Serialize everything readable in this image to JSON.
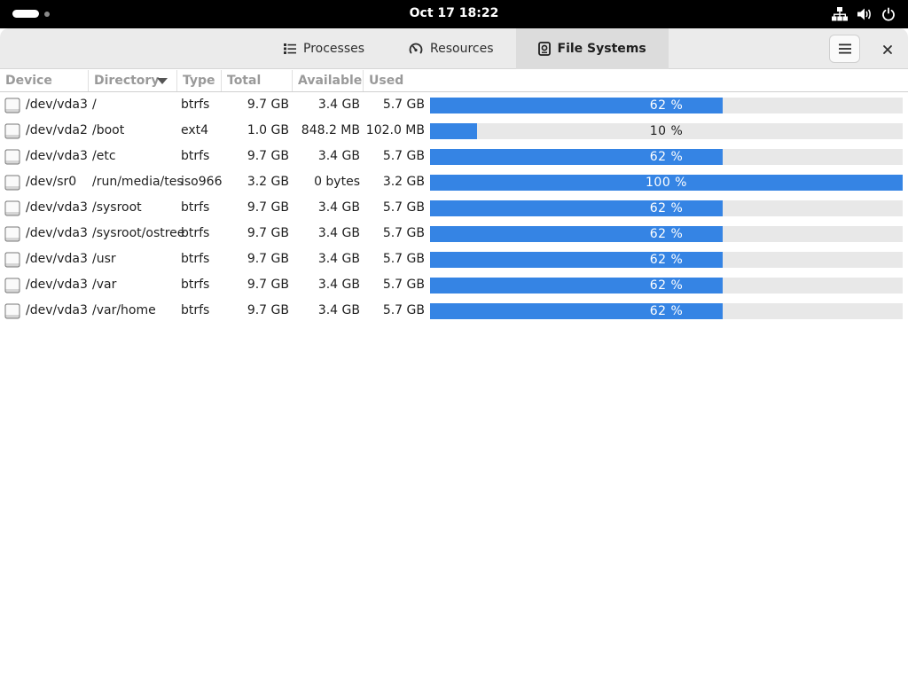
{
  "topbar": {
    "clock": "Oct 17  18:22",
    "icons": [
      "network-icon",
      "volume-icon",
      "power-icon"
    ]
  },
  "tabs": [
    {
      "label": "Processes",
      "icon": "list-icon",
      "active": false
    },
    {
      "label": "Resources",
      "icon": "gauge-icon",
      "active": false
    },
    {
      "label": "File Systems",
      "icon": "disk-icon",
      "active": true
    }
  ],
  "columns": {
    "device": "Device",
    "directory": "Directory",
    "type": "Type",
    "total": "Total",
    "available": "Available",
    "used": "Used"
  },
  "rows": [
    {
      "device": "/dev/vda3",
      "directory": "/",
      "type": "btrfs",
      "total": "9.7 GB",
      "available": "3.4 GB",
      "used": "5.7 GB",
      "percent": 62,
      "percent_label": "62 %"
    },
    {
      "device": "/dev/vda2",
      "directory": "/boot",
      "type": "ext4",
      "total": "1.0 GB",
      "available": "848.2 MB",
      "used": "102.0 MB",
      "percent": 10,
      "percent_label": "10 %"
    },
    {
      "device": "/dev/vda3",
      "directory": "/etc",
      "type": "btrfs",
      "total": "9.7 GB",
      "available": "3.4 GB",
      "used": "5.7 GB",
      "percent": 62,
      "percent_label": "62 %"
    },
    {
      "device": "/dev/sr0",
      "directory": "/run/media/tes",
      "type": "iso966",
      "total": "3.2 GB",
      "available": "0 bytes",
      "used": "3.2 GB",
      "percent": 100,
      "percent_label": "100 %"
    },
    {
      "device": "/dev/vda3",
      "directory": "/sysroot",
      "type": "btrfs",
      "total": "9.7 GB",
      "available": "3.4 GB",
      "used": "5.7 GB",
      "percent": 62,
      "percent_label": "62 %"
    },
    {
      "device": "/dev/vda3",
      "directory": "/sysroot/ostree",
      "type": "btrfs",
      "total": "9.7 GB",
      "available": "3.4 GB",
      "used": "5.7 GB",
      "percent": 62,
      "percent_label": "62 %"
    },
    {
      "device": "/dev/vda3",
      "directory": "/usr",
      "type": "btrfs",
      "total": "9.7 GB",
      "available": "3.4 GB",
      "used": "5.7 GB",
      "percent": 62,
      "percent_label": "62 %"
    },
    {
      "device": "/dev/vda3",
      "directory": "/var",
      "type": "btrfs",
      "total": "9.7 GB",
      "available": "3.4 GB",
      "used": "5.7 GB",
      "percent": 62,
      "percent_label": "62 %"
    },
    {
      "device": "/dev/vda3",
      "directory": "/var/home",
      "type": "btrfs",
      "total": "9.7 GB",
      "available": "3.4 GB",
      "used": "5.7 GB",
      "percent": 62,
      "percent_label": "62 %"
    }
  ],
  "colors": {
    "accent": "#3584e4",
    "bar_track": "#e8e8e8",
    "topbar": "#000000",
    "headerbar": "#ebebeb"
  }
}
